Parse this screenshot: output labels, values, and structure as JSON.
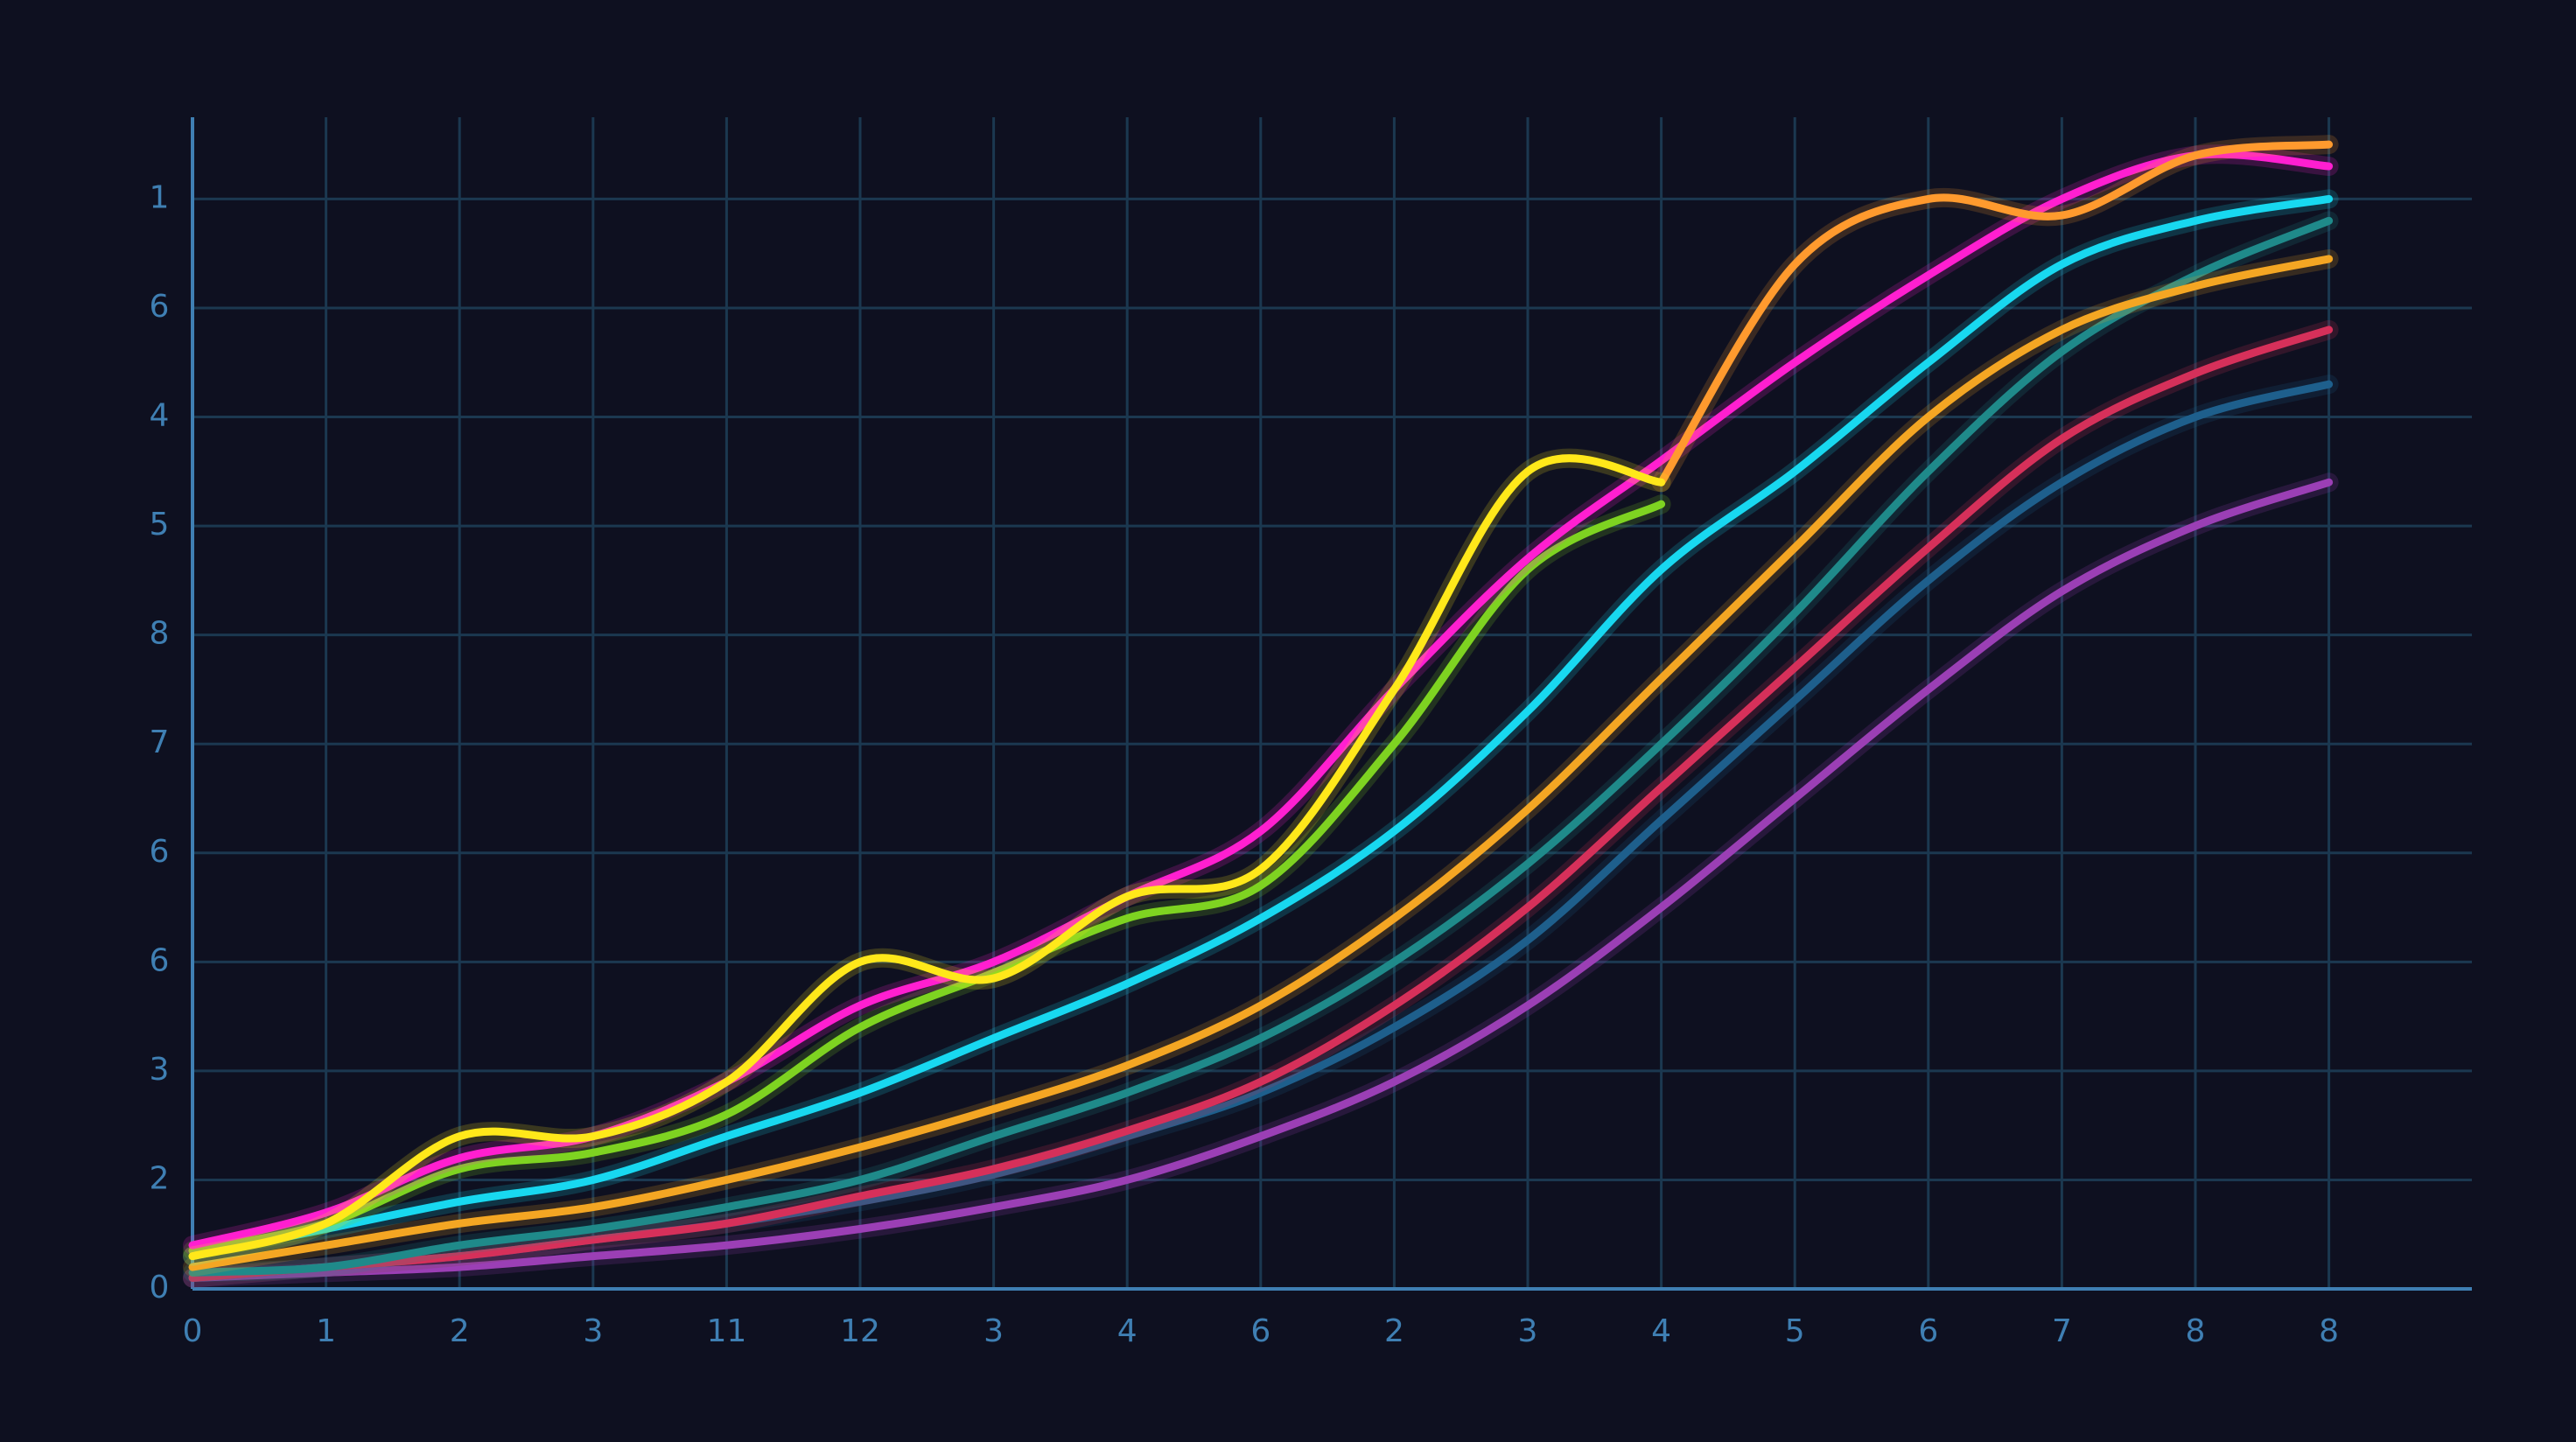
{
  "chart_data": {
    "type": "line",
    "categories": [
      "0",
      "1",
      "2",
      "3",
      "11",
      "12",
      "3",
      "4",
      "6",
      "2",
      "3",
      "4",
      "5",
      "6",
      "7",
      "8",
      "8"
    ],
    "ylim": [
      0,
      10.75
    ],
    "yticks": [
      0,
      {
        "value": 1,
        "label": "2"
      },
      {
        "value": 2,
        "label": "3"
      },
      {
        "value": 3,
        "label": "6"
      },
      {
        "value": 4,
        "label": "6"
      },
      {
        "value": 5,
        "label": "7"
      },
      {
        "value": 6,
        "label": "8"
      },
      {
        "value": 7,
        "label": "5"
      },
      {
        "value": 8,
        "label": "4"
      },
      {
        "value": 9,
        "label": "6"
      },
      {
        "value": 10,
        "label": "1"
      }
    ],
    "grid": true,
    "series": [
      {
        "color": "#9b3fb5",
        "values": [
          0.1,
          0.15,
          0.2,
          0.3,
          0.4,
          0.55,
          0.75,
          1.0,
          1.4,
          1.9,
          2.6,
          3.5,
          4.5,
          5.5,
          6.4,
          7.0,
          7.4
        ]
      },
      {
        "color": "#1e5f8c",
        "values": [
          0.1,
          0.2,
          0.3,
          0.45,
          0.6,
          0.8,
          1.05,
          1.4,
          1.8,
          2.4,
          3.2,
          4.3,
          5.4,
          6.5,
          7.4,
          8.0,
          8.3
        ]
      },
      {
        "color": "#d6305a",
        "values": [
          0.1,
          0.2,
          0.3,
          0.45,
          0.6,
          0.85,
          1.1,
          1.45,
          1.9,
          2.6,
          3.5,
          4.6,
          5.7,
          6.8,
          7.8,
          8.4,
          8.8
        ]
      },
      {
        "color": "#1f8a8a",
        "values": [
          0.15,
          0.2,
          0.4,
          0.55,
          0.75,
          1.0,
          1.4,
          1.8,
          2.3,
          3.0,
          3.9,
          5.0,
          6.2,
          7.5,
          8.6,
          9.3,
          9.8
        ]
      },
      {
        "color": "#f4a623",
        "values": [
          0.2,
          0.4,
          0.6,
          0.75,
          1.0,
          1.3,
          1.65,
          2.05,
          2.6,
          3.4,
          4.4,
          5.6,
          6.8,
          8.0,
          8.8,
          9.2,
          9.45
        ]
      },
      {
        "color": "#18d8f0",
        "values": [
          0.3,
          0.55,
          0.8,
          1.0,
          1.4,
          1.8,
          2.3,
          2.8,
          3.4,
          4.2,
          5.3,
          6.6,
          7.5,
          8.5,
          9.4,
          9.8,
          10.0
        ]
      },
      {
        "color": "#7ed321",
        "values": [
          0.35,
          0.6,
          1.1,
          1.25,
          1.6,
          2.4,
          2.9,
          3.4,
          3.7,
          5.0,
          6.6,
          7.2,
          null,
          null,
          null,
          null,
          null
        ]
      },
      {
        "color": "#ff1fd0",
        "values": [
          0.4,
          0.7,
          1.2,
          1.4,
          1.9,
          2.6,
          3.0,
          3.6,
          4.2,
          5.5,
          6.7,
          7.6,
          8.5,
          9.3,
          10.0,
          10.4,
          10.3
        ]
      },
      {
        "color": "#ff9a2e",
        "values": [
          null,
          null,
          null,
          null,
          null,
          null,
          null,
          null,
          null,
          null,
          null,
          7.4,
          9.4,
          10.0,
          9.85,
          10.4,
          10.5
        ]
      },
      {
        "color": "#ffe81a",
        "values": [
          0.3,
          0.6,
          1.4,
          1.4,
          1.9,
          3.0,
          2.85,
          3.6,
          3.85,
          5.5,
          7.5,
          7.4,
          null,
          null,
          null,
          null,
          null
        ]
      }
    ]
  }
}
